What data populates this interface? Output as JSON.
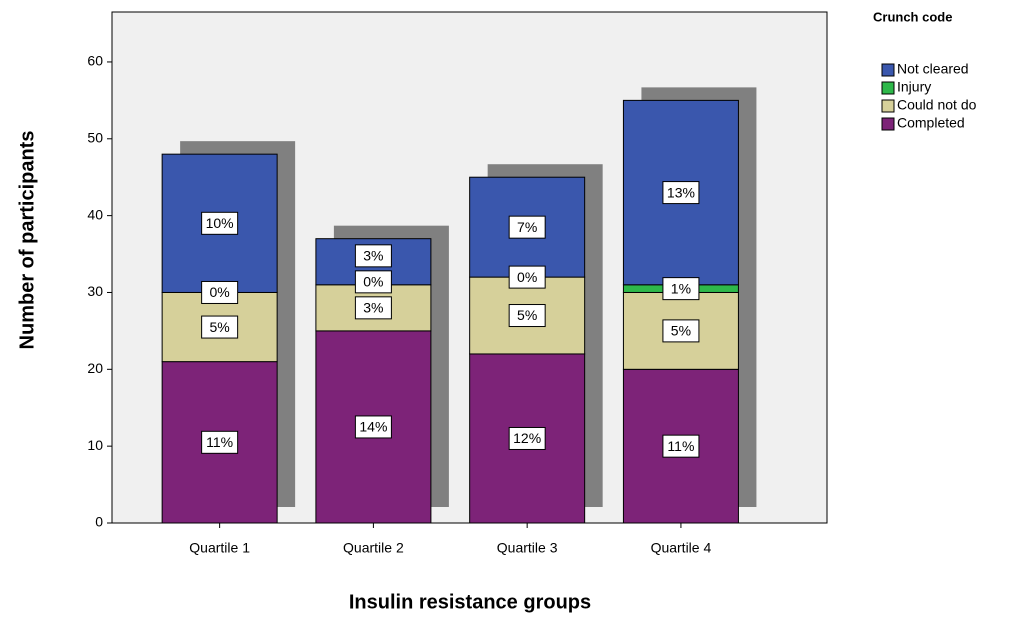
{
  "chart_data": {
    "type": "stacked_bar",
    "y_label": "Number of participants",
    "x_label": "Insulin resistance groups",
    "legend_title": "Crunch code",
    "categories": [
      "Quartile 1",
      "Quartile 2",
      "Quartile 3",
      "Quartile 4"
    ],
    "series": [
      {
        "name": "Not cleared",
        "color": "#3a57ad",
        "values": [
          18,
          6,
          13,
          24
        ],
        "labels": [
          "10%",
          "3%",
          "7%",
          "13%"
        ]
      },
      {
        "name": "Injury",
        "color": "#2eb84a",
        "values": [
          0,
          0,
          0,
          1
        ],
        "labels": [
          "0%",
          "0%",
          "0%",
          "1%"
        ]
      },
      {
        "name": "Could not do",
        "color": "#d6d09a",
        "values": [
          9,
          6,
          10,
          10
        ],
        "labels": [
          "5%",
          "3%",
          "5%",
          "5%"
        ]
      },
      {
        "name": "Completed",
        "color": "#7d2378",
        "values": [
          21,
          25,
          22,
          20
        ],
        "labels": [
          "11%",
          "14%",
          "12%",
          "11%"
        ]
      }
    ],
    "ylim": [
      0,
      66.5
    ],
    "yticks": [
      0,
      10,
      20,
      30,
      40,
      50,
      60
    ],
    "legend": "right"
  }
}
